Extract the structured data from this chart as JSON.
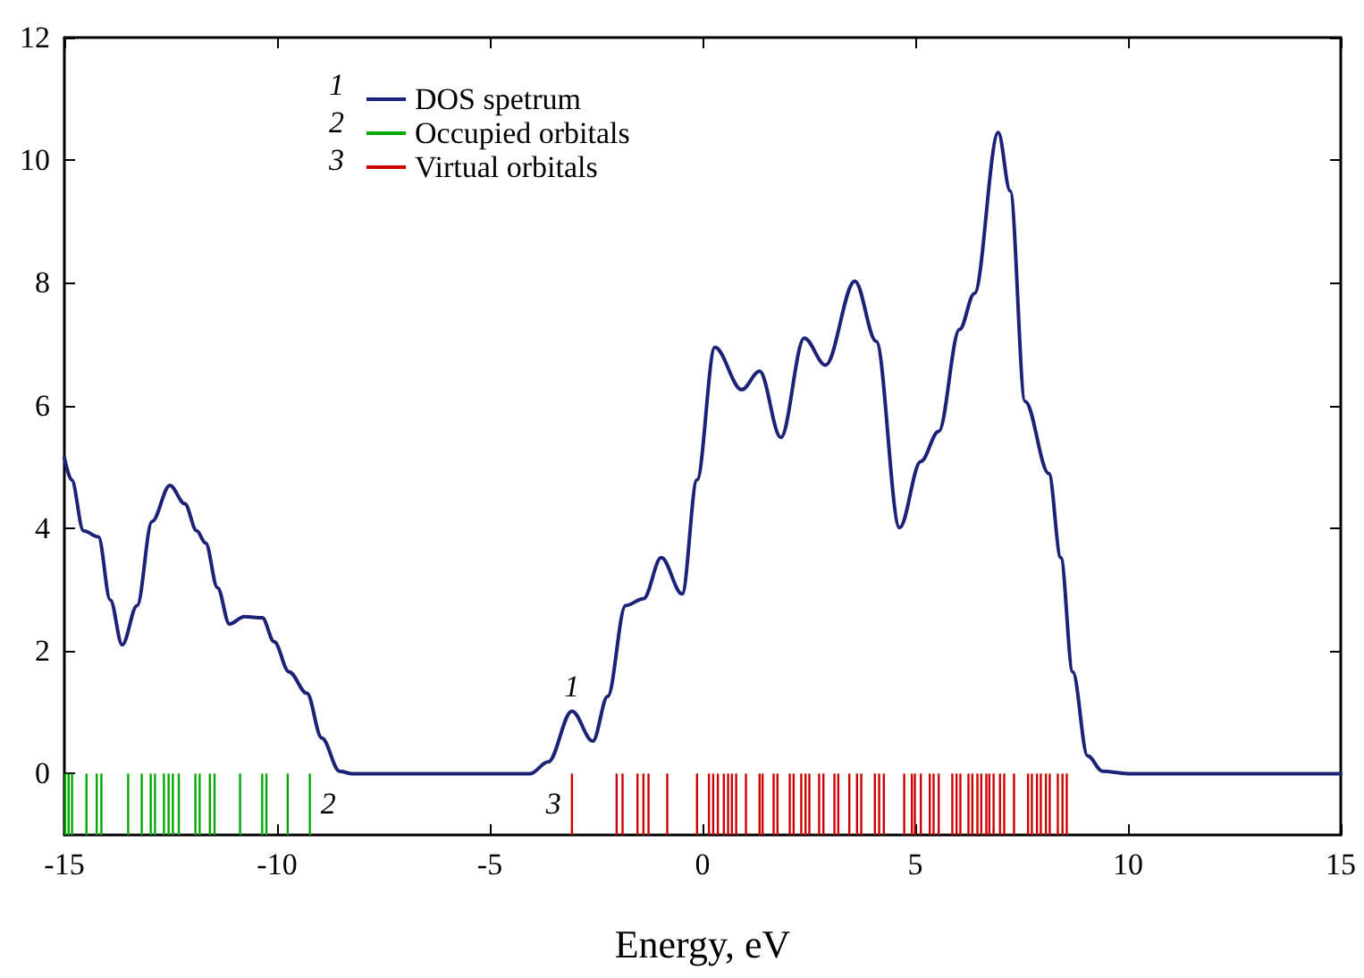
{
  "chart_data": {
    "type": "line",
    "xlabel": "Energy, eV",
    "xlim": [
      -15,
      15
    ],
    "xticks": [
      -15,
      -10,
      -5,
      0,
      5,
      10,
      15
    ],
    "ylim": [
      -1,
      12
    ],
    "yticks": [
      0,
      2,
      4,
      6,
      8,
      10,
      12
    ],
    "grid": false,
    "legend": "top",
    "marker": "none",
    "line_style": "solid",
    "series": [
      {
        "name": "DOS spetrum",
        "color": "#1c2278",
        "x": [
          -15.0,
          -14.83,
          -14.55,
          -14.2,
          -13.92,
          -13.64,
          -13.29,
          -12.94,
          -12.52,
          -12.17,
          -11.89,
          -11.68,
          -11.4,
          -11.12,
          -10.77,
          -10.35,
          -10.07,
          -9.72,
          -9.3,
          -8.95,
          -8.53,
          -8.25,
          -4.05,
          -3.63,
          -3.07,
          -2.58,
          -2.23,
          -1.81,
          -1.39,
          -0.97,
          -0.48,
          -0.13,
          0.29,
          0.92,
          1.34,
          1.84,
          2.39,
          2.89,
          3.58,
          4.08,
          4.63,
          5.13,
          5.55,
          6.04,
          6.39,
          6.95,
          7.23,
          7.58,
          8.14,
          8.42,
          8.7,
          9.05,
          9.4,
          10,
          15
        ],
        "values": [
          5.15,
          4.79,
          3.96,
          3.86,
          2.83,
          2.1,
          2.74,
          4.11,
          4.7,
          4.4,
          3.96,
          3.76,
          3.03,
          2.44,
          2.56,
          2.54,
          2.15,
          1.66,
          1.31,
          0.58,
          0.04,
          0,
          0,
          0.19,
          1.02,
          0.53,
          1.26,
          2.74,
          2.85,
          3.52,
          2.93,
          4.79,
          6.95,
          6.26,
          6.56,
          5.48,
          7.1,
          6.66,
          8.03,
          7.05,
          4.01,
          5.09,
          5.58,
          7.24,
          7.83,
          10.45,
          9.5,
          6.07,
          4.89,
          3.52,
          1.66,
          0.29,
          0.04,
          0,
          0
        ]
      },
      {
        "name": "Occupied orbitals",
        "type": "bar",
        "color": "#00a800",
        "x": [
          -14.98,
          -14.9,
          -14.82,
          -14.48,
          -14.24,
          -14.13,
          -13.5,
          -13.18,
          -12.97,
          -12.87,
          -12.66,
          -12.55,
          -12.45,
          -12.31,
          -11.92,
          -11.82,
          -11.58,
          -11.47,
          -10.87,
          -10.35,
          -10.25,
          -9.75,
          -9.23
        ],
        "values": [
          1,
          1,
          1,
          1,
          1,
          1,
          1,
          1,
          1,
          1,
          1,
          1,
          1,
          1,
          1,
          1,
          1,
          1,
          1,
          1,
          1,
          1,
          1
        ],
        "base": [
          -1,
          -1,
          -1,
          -1,
          -1,
          -1,
          -1,
          -1,
          -1,
          -1,
          -1,
          -1,
          -1,
          -1,
          -1,
          -1,
          -1,
          -1,
          -1,
          -1,
          -1,
          -1,
          -1
        ]
      },
      {
        "name": "Virtual orbitals",
        "type": "bar",
        "color": "#cc0000",
        "x": [
          -3.07,
          -2.02,
          -1.88,
          -1.53,
          -1.39,
          -1.27,
          -0.83,
          -0.13,
          0.15,
          0.25,
          0.36,
          0.5,
          0.6,
          0.69,
          0.79,
          1.02,
          1.34,
          1.41,
          1.67,
          1.76,
          2.05,
          2.14,
          2.32,
          2.42,
          2.51,
          2.74,
          2.84,
          3.1,
          3.19,
          3.45,
          3.63,
          3.73,
          4.05,
          4.15,
          4.26,
          4.74,
          4.92,
          4.99,
          5.13,
          5.34,
          5.43,
          5.55,
          5.87,
          5.97,
          6.06,
          6.25,
          6.34,
          6.46,
          6.55,
          6.67,
          6.74,
          6.84,
          6.99,
          7.09,
          7.32,
          7.65,
          7.74,
          7.86,
          7.95,
          8.07,
          8.16,
          8.35,
          8.46,
          8.56
        ],
        "values": [
          1,
          1,
          1,
          1,
          1,
          1,
          1,
          1,
          1,
          1,
          1,
          1,
          1,
          1,
          1,
          1,
          1,
          1,
          1,
          1,
          1,
          1,
          1,
          1,
          1,
          1,
          1,
          1,
          1,
          1,
          1,
          1,
          1,
          1,
          1,
          1,
          1,
          1,
          1,
          1,
          1,
          1,
          1,
          1,
          1,
          1,
          1,
          1,
          1,
          1,
          1,
          1,
          1,
          1,
          1,
          1,
          1,
          1,
          1,
          1,
          1,
          1,
          1,
          1
        ],
        "base": [
          -1,
          -1,
          -1,
          -1,
          -1,
          -1,
          -1,
          -1,
          -1,
          -1,
          -1,
          -1,
          -1,
          -1,
          -1,
          -1,
          -1,
          -1,
          -1,
          -1,
          -1,
          -1,
          -1,
          -1,
          -1,
          -1,
          -1,
          -1,
          -1,
          -1,
          -1,
          -1,
          -1,
          -1,
          -1,
          -1,
          -1,
          -1,
          -1,
          -1,
          -1,
          -1,
          -1,
          -1,
          -1,
          -1,
          -1,
          -1,
          -1,
          -1,
          -1,
          -1,
          -1,
          -1,
          -1,
          -1,
          -1,
          -1,
          -1,
          -1,
          -1,
          -1,
          -1,
          -1
        ]
      }
    ],
    "annotations": [
      {
        "text": "1",
        "x": -3.07,
        "y": 1.02
      },
      "2",
      "3"
    ]
  }
}
